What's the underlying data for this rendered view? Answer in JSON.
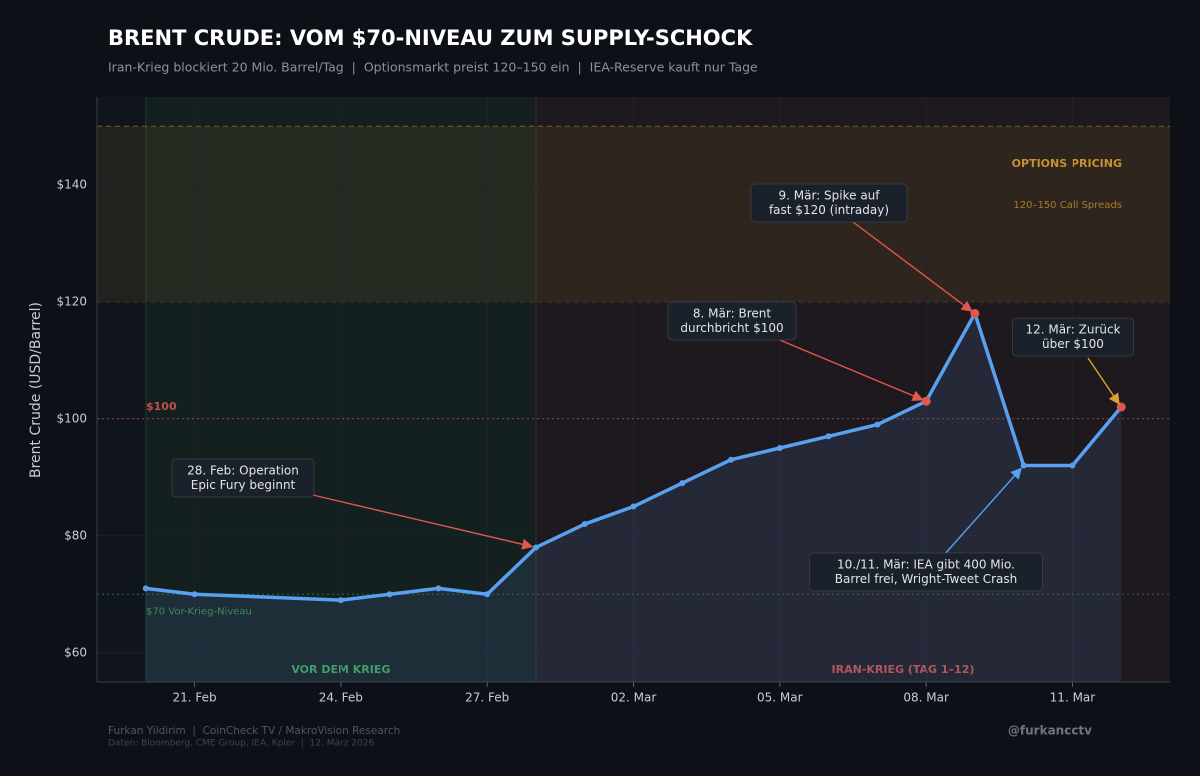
{
  "chart_data": {
    "type": "line",
    "title": "BRENT CRUDE: VOM $70-NIVEAU ZUM SUPPLY-SCHOCK",
    "subtitle": "Iran-Krieg blockiert 20 Mio. Barrel/Tag  |  Optionsmarkt preist 120–150 ein  |  IEA-Reserve kauft nur Tage",
    "ylabel": "Brent Crude (USD/Barrel)",
    "x": [
      "20. Feb",
      "21. Feb",
      "24. Feb",
      "25. Feb",
      "26. Feb",
      "27. Feb",
      "28. Feb",
      "01. Mar",
      "02. Mar",
      "03. Mar",
      "04. Mar",
      "05. Mar",
      "06. Mar",
      "07. Mar",
      "08. Mar",
      "09. Mar",
      "10. Mar",
      "11. Mar",
      "12. Mar"
    ],
    "series": [
      {
        "name": "Brent Crude",
        "color": "#5aa0f0",
        "values": [
          71,
          70,
          69,
          70,
          71,
          70,
          78,
          82,
          85,
          89,
          93,
          95,
          97,
          99,
          103,
          118,
          92,
          92,
          102
        ]
      }
    ],
    "xlim": [
      "19. Feb",
      "13. Mar"
    ],
    "xticks": [
      "21. Feb",
      "24. Feb",
      "27. Feb",
      "02. Mar",
      "05. Mar",
      "08. Mar",
      "11. Mar"
    ],
    "ylim": [
      55,
      155
    ],
    "yticks": [
      {
        "value": 60,
        "label": "$60"
      },
      {
        "value": 80,
        "label": "$80"
      },
      {
        "value": 100,
        "label": "$100"
      },
      {
        "value": 120,
        "label": "$120"
      },
      {
        "value": 140,
        "label": "$140"
      }
    ],
    "grid": true,
    "hlines": [
      {
        "value": 100,
        "label": "$100",
        "color": "#c0504d"
      },
      {
        "value": 70,
        "label": "$70 Vor-Krieg-Niveau",
        "color": "#3a8a4f"
      }
    ],
    "band": {
      "range": [
        120,
        150
      ],
      "label": "OPTIONS PRICING",
      "sublabel": "120–150 Call Spreads",
      "color": "#c8902e"
    },
    "regions": [
      {
        "from": "20. Feb",
        "to": "28. Feb",
        "label": "VOR DEM KRIEG",
        "color": "#3fa35a"
      },
      {
        "from": "28. Feb",
        "to": "13. Mar",
        "label": "IRAN-KRIEG (TAG 1–12)",
        "color": "#c0504d"
      }
    ],
    "annotations": [
      {
        "lines": [
          "28. Feb: Operation",
          "Epic Fury beginnt"
        ]
      },
      {
        "lines": [
          "8. Mär: Brent",
          "durchbricht $100"
        ]
      },
      {
        "lines": [
          "9. Mär: Spike auf",
          "fast $120 (intraday)"
        ]
      },
      {
        "lines": [
          "10./11. Mär: IEA gibt 400 Mio.",
          "Barrel frei, Wright-Tweet Crash"
        ]
      },
      {
        "lines": [
          "12. Mär: Zurück",
          "über $100"
        ]
      }
    ],
    "footer": [
      "Furkan Yildirim  |  CoinCheck TV / MakroVision Research",
      "Daten: Bloomberg, CME Group, IEA, Kpler  |  12. März 2026"
    ],
    "handle": "@furkancctv"
  }
}
